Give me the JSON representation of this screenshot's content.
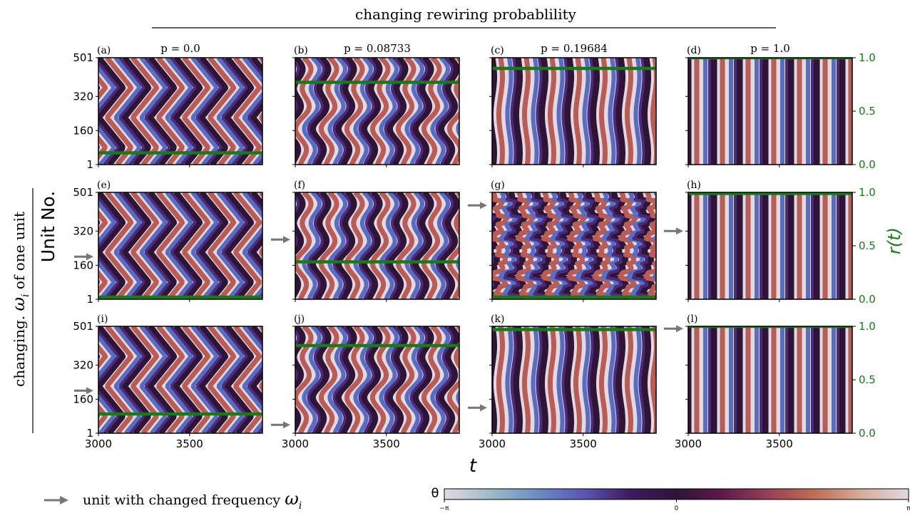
{
  "figure": {
    "top_title": "changing rewiring probablility",
    "left_title_prefix": "changing. ",
    "left_title_omega": "ω",
    "left_title_sub": "i",
    "left_title_suffix": " of one unit",
    "ylabel": "Unit No.",
    "xlabel": "t",
    "r_label": "r(t)",
    "legend_arrow_text": "unit with changed frequency ",
    "legend_omega": "ω",
    "legend_sub": "i",
    "colorbar_label": "θ",
    "colorbar_ticks": [
      "−π",
      "0",
      "π"
    ]
  },
  "colors": {
    "order_parameter": "#1a7a1a",
    "arrow": "#777777",
    "colormap_twilight": [
      "#e2d9e2",
      "#9ebbc9",
      "#6a8ec2",
      "#5a55b6",
      "#3f1960",
      "#2f1436",
      "#5e1a4c",
      "#9a4055",
      "#c16f55",
      "#d6ad99",
      "#e2d9e2"
    ]
  },
  "chart_data": {
    "type": "heatmap",
    "rows": [
      "top",
      "middle",
      "bottom"
    ],
    "columns": [
      {
        "title": "p = 0.0",
        "p": 0.0
      },
      {
        "title": "p = 0.08733",
        "p": 0.08733
      },
      {
        "title": "p = 0.19684",
        "p": 0.19684
      },
      {
        "title": "p = 1.0",
        "p": 1.0
      }
    ],
    "x_ticks": [
      "3000",
      "3500"
    ],
    "x_tick_values": [
      3000,
      3500
    ],
    "xlim": [
      3000,
      3900
    ],
    "y_ticks": [
      "1",
      "160",
      "320",
      "501"
    ],
    "y_tick_values": [
      1,
      160,
      320,
      501
    ],
    "ylim": [
      1,
      501
    ],
    "r_ticks": [
      "0.0",
      "0.5",
      "1.0"
    ],
    "r_tick_values": [
      0.0,
      0.5,
      1.0
    ],
    "r_lim": [
      0.0,
      1.0
    ],
    "colorbar_range": [
      -3.14159,
      3.14159
    ],
    "panels": [
      {
        "label": "(a)",
        "row": 0,
        "col": 0,
        "pattern": "zigzag",
        "r": 0.11,
        "arrow_unit": null
      },
      {
        "label": "(b)",
        "row": 0,
        "col": 1,
        "pattern": "wavy",
        "r": 0.77,
        "arrow_unit": null
      },
      {
        "label": "(c)",
        "row": 0,
        "col": 2,
        "pattern": "stripes",
        "r": 0.9,
        "arrow_unit": null
      },
      {
        "label": "(d)",
        "row": 0,
        "col": 3,
        "pattern": "uniform",
        "r": 1.0,
        "arrow_unit": null
      },
      {
        "label": "(e)",
        "row": 1,
        "col": 0,
        "pattern": "zigzag",
        "r": 0.02,
        "arrow_unit": 200
      },
      {
        "label": "(f)",
        "row": 1,
        "col": 1,
        "pattern": "wavy",
        "r": 0.35,
        "arrow_unit": 280
      },
      {
        "label": "(g)",
        "row": 1,
        "col": 2,
        "pattern": "chaotic",
        "r": 0.02,
        "arrow_unit": 440
      },
      {
        "label": "(h)",
        "row": 1,
        "col": 3,
        "pattern": "uniform",
        "r": 0.99,
        "arrow_unit": 320
      },
      {
        "label": "(i)",
        "row": 2,
        "col": 0,
        "pattern": "zigzag",
        "r": 0.18,
        "arrow_unit": 200
      },
      {
        "label": "(j)",
        "row": 2,
        "col": 1,
        "pattern": "wavy",
        "r": 0.82,
        "arrow_unit": 40
      },
      {
        "label": "(k)",
        "row": 2,
        "col": 2,
        "pattern": "stripes",
        "r": 0.97,
        "arrow_unit": 120
      },
      {
        "label": "(l)",
        "row": 2,
        "col": 3,
        "pattern": "uniform",
        "r": 1.0,
        "arrow_unit": 490
      }
    ]
  }
}
